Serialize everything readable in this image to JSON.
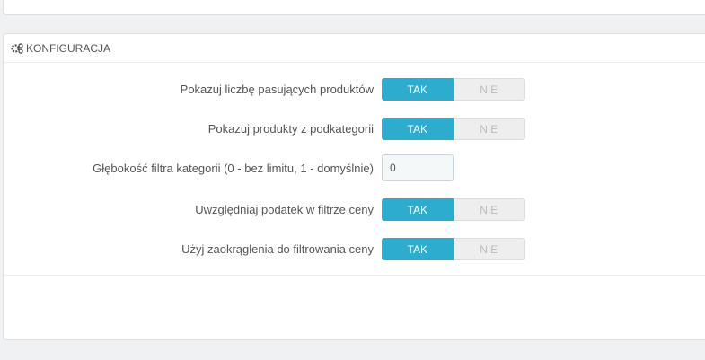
{
  "panel": {
    "title": "Konfiguracja",
    "icon": "cogs-icon"
  },
  "colors": {
    "accent": "#2eacce"
  },
  "rows": [
    {
      "label": "Pokazuj liczbę pasujących produktów",
      "yes": "TAK",
      "no": "NIE",
      "value": "TAK"
    },
    {
      "label": "Pokazuj produkty z podkategorii",
      "yes": "TAK",
      "no": "NIE",
      "value": "TAK"
    },
    {
      "label": "Głębokość filtra kategorii (0 - bez limitu, 1 - domyślnie)",
      "value": "0"
    },
    {
      "label": "Uwzględniaj podatek w filtrze ceny",
      "yes": "TAK",
      "no": "NIE",
      "value": "TAK"
    },
    {
      "label": "Użyj zaokrąglenia do filtrowania ceny",
      "yes": "TAK",
      "no": "NIE",
      "value": "TAK"
    }
  ]
}
